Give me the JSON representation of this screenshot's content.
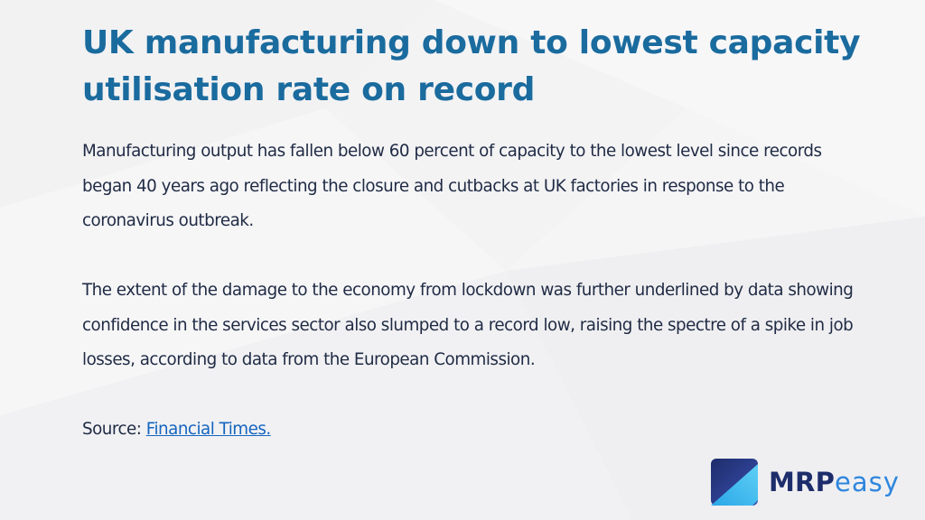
{
  "slide": {
    "title": "UK manufacturing down to lowest capacity utilisation rate on record",
    "paragraph_1": "Manufacturing output has fallen below 60 percent of capacity to the lowest level since records began 40 years ago reflecting the closure and cutbacks at UK factories in response to the coronavirus outbreak.",
    "paragraph_2": "The extent of the damage to the economy from lockdown was further underlined by data showing confidence in the services sector also slumped to a record low, raising the spectre of a spike in job losses, according to data from the European Commission.",
    "source_label": "Source: ",
    "source_link": "Financial Times."
  },
  "logo": {
    "icon": "mrpeasy-logo-mark-icon",
    "text_strong": "MRP",
    "text_light": "easy"
  },
  "colors": {
    "title": "#1a6b9e",
    "body": "#1f2a44",
    "link": "#1565c0",
    "logo_dark": "#1d2d6b",
    "logo_light": "#2e86de"
  }
}
